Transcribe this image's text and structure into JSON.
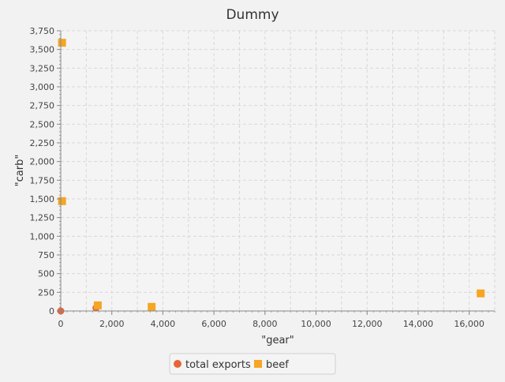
{
  "chart_data": {
    "type": "scatter",
    "title": "Dummy",
    "xlabel": "\"gear\"",
    "ylabel": "\"carb\"",
    "xlim": [
      0,
      17000
    ],
    "ylim": [
      0,
      3750
    ],
    "x_ticks": [
      0,
      2000,
      4000,
      6000,
      8000,
      10000,
      12000,
      14000,
      16000
    ],
    "x_tick_labels": [
      "0",
      "2,000",
      "4,000",
      "6,000",
      "8,000",
      "10,000",
      "12,000",
      "14,000",
      "16,000"
    ],
    "y_ticks": [
      0,
      250,
      500,
      750,
      1000,
      1250,
      1500,
      1750,
      2000,
      2250,
      2500,
      2750,
      3000,
      3250,
      3500,
      3750
    ],
    "y_tick_labels": [
      "0",
      "250",
      "500",
      "750",
      "1,000",
      "1,250",
      "1,500",
      "1,750",
      "2,000",
      "2,250",
      "2,500",
      "2,750",
      "3,000",
      "3,250",
      "3,500",
      "3,750"
    ],
    "grid": true,
    "legend_position": "bottom",
    "series": [
      {
        "name": "total exports",
        "color": "#e8643a",
        "marker": "circle",
        "points": [
          {
            "x": 0,
            "y": 0
          },
          {
            "x": 1380,
            "y": 40
          }
        ]
      },
      {
        "name": "beef",
        "color": "#f5a623",
        "marker": "square",
        "points": [
          {
            "x": 50,
            "y": 3590
          },
          {
            "x": 50,
            "y": 1470
          },
          {
            "x": 1450,
            "y": 75
          },
          {
            "x": 3560,
            "y": 55
          },
          {
            "x": 16450,
            "y": 235
          }
        ]
      }
    ]
  }
}
